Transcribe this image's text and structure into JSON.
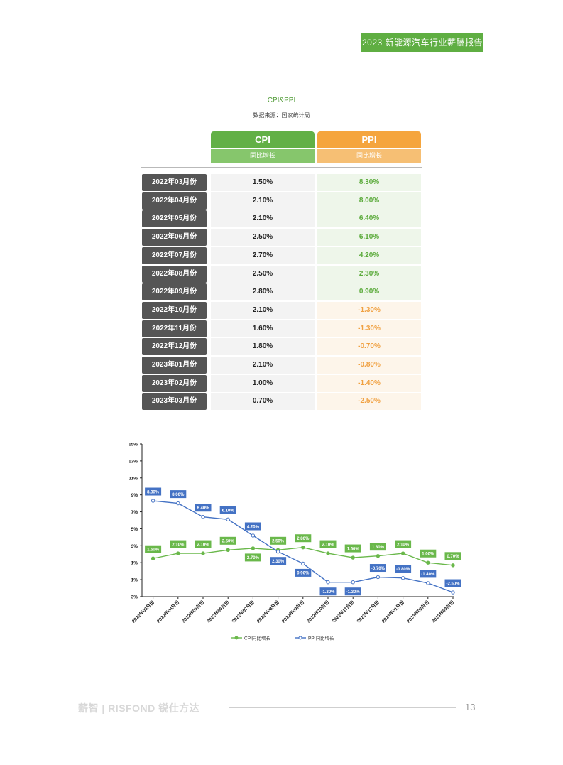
{
  "header": {
    "report_title": "2023 新能源汽车行业薪酬报告"
  },
  "section": {
    "title": "CPI&PPI",
    "source": "数据来源：国家统计局"
  },
  "table": {
    "cpi_header": "CPI",
    "cpi_subheader": "同比增长",
    "ppi_header": "PPI",
    "ppi_subheader": "同比增长",
    "rows": [
      {
        "month": "2022年03月份",
        "cpi": "1.50%",
        "ppi": "8.30%"
      },
      {
        "month": "2022年04月份",
        "cpi": "2.10%",
        "ppi": "8.00%"
      },
      {
        "month": "2022年05月份",
        "cpi": "2.10%",
        "ppi": "6.40%"
      },
      {
        "month": "2022年06月份",
        "cpi": "2.50%",
        "ppi": "6.10%"
      },
      {
        "month": "2022年07月份",
        "cpi": "2.70%",
        "ppi": "4.20%"
      },
      {
        "month": "2022年08月份",
        "cpi": "2.50%",
        "ppi": "2.30%"
      },
      {
        "month": "2022年09月份",
        "cpi": "2.80%",
        "ppi": "0.90%"
      },
      {
        "month": "2022年10月份",
        "cpi": "2.10%",
        "ppi": "-1.30%"
      },
      {
        "month": "2022年11月份",
        "cpi": "1.60%",
        "ppi": "-1.30%"
      },
      {
        "month": "2022年12月份",
        "cpi": "1.80%",
        "ppi": "-0.70%"
      },
      {
        "month": "2023年01月份",
        "cpi": "2.10%",
        "ppi": "-0.80%"
      },
      {
        "month": "2023年02月份",
        "cpi": "1.00%",
        "ppi": "-1.40%"
      },
      {
        "month": "2023年03月份",
        "cpi": "0.70%",
        "ppi": "-2.50%"
      }
    ]
  },
  "chart_data": {
    "type": "line",
    "title": "",
    "xlabel": "",
    "ylabel": "",
    "ylim": [
      -3,
      15
    ],
    "y_ticks": [
      "-3%",
      "-1%",
      "1%",
      "3%",
      "5%",
      "7%",
      "9%",
      "11%",
      "13%",
      "15%"
    ],
    "grid": false,
    "legend_position": "bottom",
    "categories": [
      "2022年03月份",
      "2022年04月份",
      "2022年05月份",
      "2022年06月份",
      "2022年07月份",
      "2022年08月份",
      "2022年09月份",
      "2022年10月份",
      "2022年11月份",
      "2022年12月份",
      "2023年01月份",
      "2023年02月份",
      "2023年03月份"
    ],
    "series": [
      {
        "name": "CPI同比增长",
        "color": "#6ab84b",
        "values": [
          1.5,
          2.1,
          2.1,
          2.5,
          2.7,
          2.5,
          2.8,
          2.1,
          1.6,
          1.8,
          2.1,
          1.0,
          0.7
        ],
        "labels": [
          "1.50%",
          "2.10%",
          "2.10%",
          "2.50%",
          "2.70%",
          "2.50%",
          "2.80%",
          "2.10%",
          "1.60%",
          "1.80%",
          "2.10%",
          "1.00%",
          "0.70%"
        ]
      },
      {
        "name": "PPI同比增长",
        "color": "#4472c4",
        "values": [
          8.3,
          8.0,
          6.4,
          6.1,
          4.2,
          2.3,
          0.9,
          -1.3,
          -1.3,
          -0.7,
          -0.8,
          -1.4,
          -2.5
        ],
        "labels": [
          "8.30%",
          "8.00%",
          "6.40%",
          "6.10%",
          "4.20%",
          "2.30%",
          "0.90%",
          "-1.30%",
          "-1.30%",
          "-0.70%",
          "-0.80%",
          "-1.40%",
          "-2.50%"
        ]
      }
    ]
  },
  "footer": {
    "brand": "薪智 | RISFOND 锐仕方达",
    "page_number": "13"
  },
  "colors": {
    "accent_green": "#62b046",
    "accent_orange": "#f5a53d",
    "label_dark": "#555555"
  }
}
